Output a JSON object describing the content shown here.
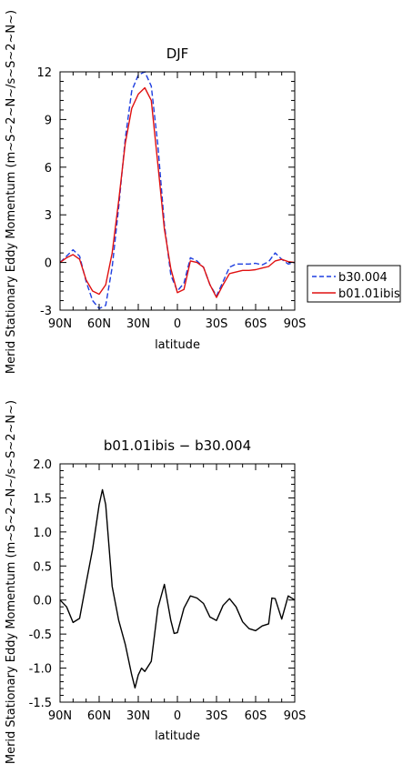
{
  "chart_data": [
    {
      "type": "line",
      "title": "DJF",
      "xlabel": "latitude",
      "ylabel": "Merid Stationary Eddy Momentum (m~S~2~N~/s~S~2~N~)",
      "x_ticks": [
        "90N",
        "60N",
        "30N",
        "0",
        "30S",
        "60S",
        "90S"
      ],
      "x_tick_values": [
        90,
        60,
        30,
        0,
        -30,
        -60,
        -90
      ],
      "xlim": [
        90,
        -90
      ],
      "y_ticks": [
        "-3",
        "0",
        "3",
        "6",
        "9",
        "12"
      ],
      "y_tick_values": [
        -3,
        0,
        3,
        6,
        9,
        12
      ],
      "ylim": [
        -3,
        12
      ],
      "legend_position": "right",
      "x": [
        90,
        85,
        80,
        75,
        70,
        65,
        60,
        55,
        50,
        45,
        40,
        35,
        30,
        25,
        20,
        15,
        10,
        5,
        0,
        -5,
        -10,
        -15,
        -20,
        -25,
        -30,
        -35,
        -40,
        -45,
        -50,
        -55,
        -60,
        -65,
        -70,
        -75,
        -80,
        -85,
        -90
      ],
      "series": [
        {
          "name": "b30.004",
          "color": "#1f3fe0",
          "dash": "dashed",
          "values": [
            0.0,
            0.4,
            0.8,
            0.4,
            -1.2,
            -2.4,
            -2.9,
            -2.7,
            -0.3,
            3.5,
            7.8,
            10.8,
            11.8,
            12.0,
            11.1,
            7.4,
            2.4,
            -0.8,
            -1.8,
            -1.3,
            0.3,
            0.1,
            -0.3,
            -1.4,
            -2.1,
            -1.2,
            -0.3,
            -0.1,
            -0.1,
            -0.1,
            -0.05,
            -0.15,
            0.05,
            0.6,
            0.2,
            -0.1,
            0.0
          ]
        },
        {
          "name": "b01.01ibis",
          "color": "#e01010",
          "dash": "solid",
          "values": [
            0.0,
            0.3,
            0.5,
            0.2,
            -1.1,
            -1.8,
            -2.0,
            -1.4,
            0.6,
            3.9,
            7.5,
            9.7,
            10.6,
            11.0,
            10.2,
            6.2,
            2.1,
            -0.4,
            -1.9,
            -1.7,
            0.1,
            0.0,
            -0.3,
            -1.4,
            -2.2,
            -1.4,
            -0.7,
            -0.6,
            -0.5,
            -0.5,
            -0.45,
            -0.35,
            -0.25,
            0.1,
            0.2,
            0.05,
            0.0
          ]
        }
      ]
    },
    {
      "type": "line",
      "title": "b01.01ibis − b30.004",
      "xlabel": "latitude",
      "ylabel": "Merid Stationary Eddy Momentum (m~S~2~N~/s~S~2~N~)",
      "x_ticks": [
        "90N",
        "60N",
        "30N",
        "0",
        "30S",
        "60S",
        "90S"
      ],
      "x_tick_values": [
        90,
        60,
        30,
        0,
        -30,
        -60,
        -90
      ],
      "xlim": [
        90,
        -90
      ],
      "y_ticks": [
        "-1.5",
        "-1.0",
        "-0.5",
        "0.0",
        "0.5",
        "1.0",
        "1.5",
        "2.0"
      ],
      "y_tick_values": [
        -1.5,
        -1.0,
        -0.5,
        0.0,
        0.5,
        1.0,
        1.5,
        2.0
      ],
      "ylim": [
        -1.5,
        2.0
      ],
      "x": [
        90,
        85,
        80,
        75,
        70,
        65,
        60,
        57.5,
        55,
        50,
        45,
        40,
        35,
        32.5,
        30,
        27.5,
        25,
        20,
        15,
        10,
        5,
        2.5,
        0,
        -5,
        -10,
        -15,
        -20,
        -25,
        -30,
        -35,
        -40,
        -45,
        -50,
        -55,
        -60,
        -65,
        -70,
        -72.5,
        -75,
        -80,
        -85,
        -90
      ],
      "series": [
        {
          "name": "",
          "color": "#000000",
          "dash": "solid",
          "values": [
            0.0,
            -0.1,
            -0.33,
            -0.27,
            0.25,
            0.75,
            1.4,
            1.62,
            1.4,
            0.2,
            -0.3,
            -0.65,
            -1.1,
            -1.29,
            -1.1,
            -1.0,
            -1.05,
            -0.9,
            -0.12,
            0.23,
            -0.3,
            -0.49,
            -0.48,
            -0.12,
            0.06,
            0.03,
            -0.05,
            -0.25,
            -0.3,
            -0.08,
            0.02,
            -0.1,
            -0.32,
            -0.42,
            -0.45,
            -0.38,
            -0.35,
            0.03,
            0.02,
            -0.28,
            0.06,
            0.0
          ]
        }
      ]
    }
  ]
}
